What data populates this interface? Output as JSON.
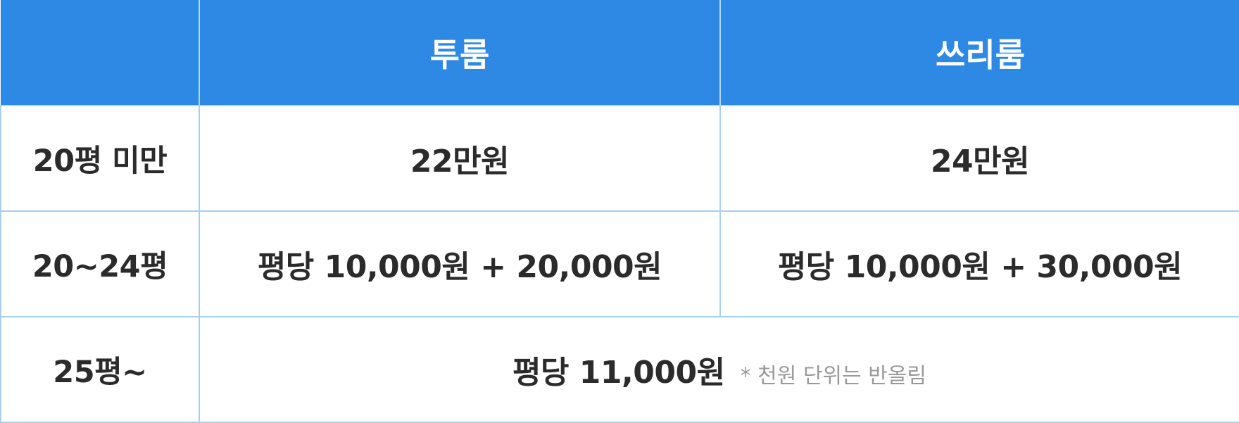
{
  "table": {
    "headers": [
      "",
      "투룸",
      "쓰리룸"
    ],
    "rows": [
      {
        "label": "20평 미만",
        "two_room": "22만원",
        "three_room": "24만원"
      },
      {
        "label": "20~24평",
        "two_room": "평당 10,000원 + 20,000원",
        "three_room": "평당 10,000원 + 30,000원"
      },
      {
        "label": "25평~",
        "merged_price": "평당 11,000원",
        "note": "* 천원 단위는 반올림"
      }
    ]
  },
  "colors": {
    "header_bg": "#2e89e4",
    "header_text": "#ffffff",
    "border": "#a9d0ef",
    "body_text": "#2b2b2b",
    "note_text": "#9a9a9a"
  }
}
